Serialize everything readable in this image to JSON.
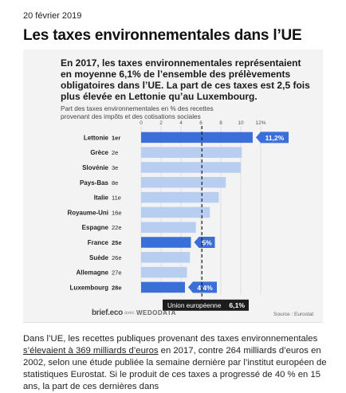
{
  "article": {
    "date": "20 février 2019",
    "headline": "Les taxes environnementales dans l’UE"
  },
  "card": {
    "lede": "En 2017, les taxes environnementales représentaient en moyenne 6,1% de l’ensemble des prélèvements obligatoires dans l’UE. La part de ces taxes est 2,5 fois plus élevée en Lettonie qu’au Luxembourg.",
    "source": "Source : Eurostat",
    "brand": "brief.eco",
    "brand_sep": "avec",
    "brand_partner": "WEDODATA"
  },
  "body": {
    "text_before_link": "Dans l’UE, les recettes publiques provenant des taxes environnementales ",
    "link": "s’élevaient à 369 milliards d’euros",
    "text_after_link": " en 2017, contre 264 milliards d’euros en 2002, selon une étude publiée la semaine dernière par l’institut européen de statistiques Eurostat. Si le produit de ces taxes a progressé de 40 % en 15 ans, la part de ces dernières dans"
  },
  "colors": {
    "bar": "#b8cef0",
    "highlight": "#3a6fd8",
    "reference_box": "#1c1c1c",
    "reference_line": "#1c1c1c"
  },
  "chart_data": {
    "type": "bar",
    "orientation": "horizontal",
    "subtitle": "Part des taxes environnementales en % des recettes provenant des impôts et des cotisations sociales",
    "x_ticks": [
      "0",
      "2",
      "4",
      "6",
      "8",
      "10",
      "12%"
    ],
    "xlim": [
      0,
      12
    ],
    "categories": [
      {
        "name": "Lettonie",
        "rank": "1er",
        "value": 11.2,
        "highlight": true,
        "label": "11,2%"
      },
      {
        "name": "Grèce",
        "rank": "2e",
        "value": 10.1
      },
      {
        "name": "Slovénie",
        "rank": "3e",
        "value": 10.0
      },
      {
        "name": "Pays-Bas",
        "rank": "8e",
        "value": 8.5
      },
      {
        "name": "Italie",
        "rank": "11e",
        "value": 7.8
      },
      {
        "name": "Royaume-Uni",
        "rank": "16e",
        "value": 6.9
      },
      {
        "name": "Espagne",
        "rank": "22e",
        "value": 5.5
      },
      {
        "name": "France",
        "rank": "25e",
        "value": 5.0,
        "highlight": true,
        "label": "5%"
      },
      {
        "name": "Suède",
        "rank": "26e",
        "value": 4.9
      },
      {
        "name": "Allemagne",
        "rank": "27e",
        "value": 4.6
      },
      {
        "name": "Luxembourg",
        "rank": "28e",
        "value": 4.4,
        "highlight": true,
        "label": "4,4%"
      }
    ],
    "reference": {
      "value": 6.1,
      "label": "Union européenne",
      "value_label": "6,1%"
    },
    "grid": true
  }
}
